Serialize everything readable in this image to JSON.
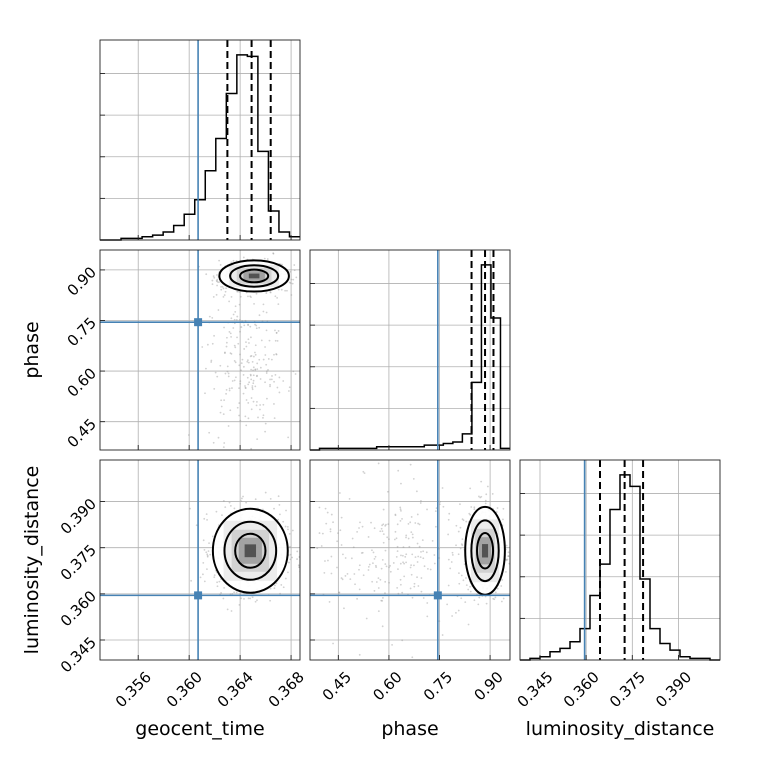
{
  "chart_data": {
    "type": "scatter",
    "plot_kind": "corner",
    "parameters": [
      {
        "key": "geocent_time",
        "label": "geocent_time",
        "range": [
          0.353,
          0.3687
        ],
        "ticks": [
          0.356,
          0.36,
          0.364,
          0.368
        ],
        "tick_labels": [
          "0.356",
          "0.360",
          "0.364",
          "0.368"
        ],
        "truth": 0.3607,
        "quantiles": [
          0.363,
          0.3649,
          0.3664
        ],
        "hist_counts": [
          0,
          0,
          1,
          1,
          2,
          3,
          5,
          9,
          16,
          25,
          43,
          63,
          91,
          115,
          114,
          55,
          18,
          5,
          2
        ]
      },
      {
        "key": "phase",
        "label": "phase",
        "range": [
          0.366,
          0.959
        ],
        "ticks": [
          0.45,
          0.6,
          0.75,
          0.9
        ],
        "tick_labels": [
          "0.45",
          "0.60",
          "0.75",
          "0.90"
        ],
        "truth": 0.745,
        "quantiles": [
          0.845,
          0.885,
          0.91
        ],
        "hist_counts": [
          0,
          1,
          1,
          1,
          1,
          1,
          1,
          2,
          2,
          2,
          2,
          2,
          3,
          3,
          4,
          5,
          10,
          42,
          115,
          82,
          1
        ]
      },
      {
        "key": "luminosity_distance",
        "label": "luminosity_distance",
        "range": [
          0.3385,
          0.4035
        ],
        "ticks": [
          0.345,
          0.36,
          0.375,
          0.39
        ],
        "tick_labels": [
          "0.345",
          "0.360",
          "0.375",
          "0.390"
        ],
        "truth": 0.3595,
        "quantiles": [
          0.3645,
          0.3725,
          0.3785
        ],
        "hist_counts": [
          0,
          1,
          2,
          5,
          7,
          11,
          19,
          39,
          58,
          91,
          112,
          105,
          49,
          19,
          10,
          6,
          2,
          1,
          1,
          0
        ]
      }
    ],
    "density_peaks": [
      {
        "x": "geocent_time",
        "y": "phase",
        "center": [
          0.3651,
          0.882
        ]
      },
      {
        "x": "geocent_time",
        "y": "luminosity_distance",
        "center": [
          0.3648,
          0.374
        ]
      },
      {
        "x": "phase",
        "y": "luminosity_distance",
        "center": [
          0.885,
          0.374
        ]
      }
    ],
    "grid": true,
    "title": ""
  }
}
